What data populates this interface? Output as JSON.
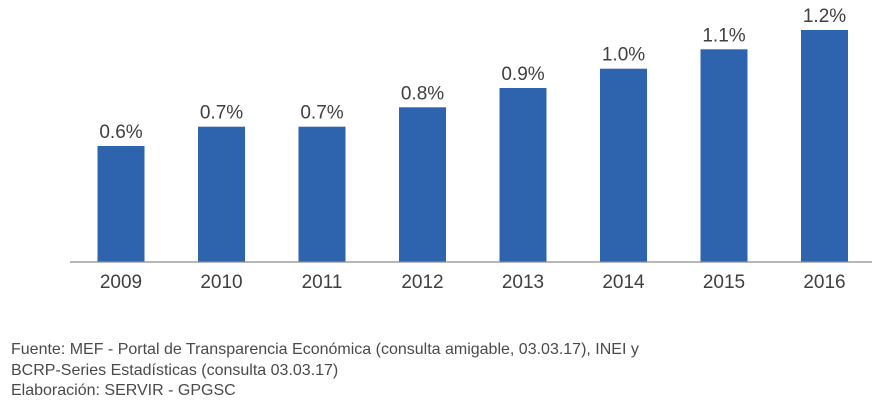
{
  "chart_data": {
    "type": "bar",
    "categories": [
      "2009",
      "2010",
      "2011",
      "2012",
      "2013",
      "2014",
      "2015",
      "2016"
    ],
    "values": [
      0.6,
      0.7,
      0.7,
      0.8,
      0.9,
      1.0,
      1.1,
      1.2
    ],
    "data_labels": [
      "0.6%",
      "0.7%",
      "0.7%",
      "0.8%",
      "0.9%",
      "1.0%",
      "1.1%",
      "1.2%"
    ],
    "title": "",
    "xlabel": "",
    "ylabel": "",
    "ylim": [
      0,
      1.25
    ],
    "grid": false,
    "legend": "none",
    "bar_color": "#2e64ad"
  },
  "source": {
    "line1": "Fuente: MEF - Portal de Transparencia Económica (consulta amigable, 03.03.17), INEI y",
    "line2": "BCRP-Series Estadísticas (consulta 03.03.17)",
    "line3": "Elaboración: SERVIR - GPGSC"
  }
}
